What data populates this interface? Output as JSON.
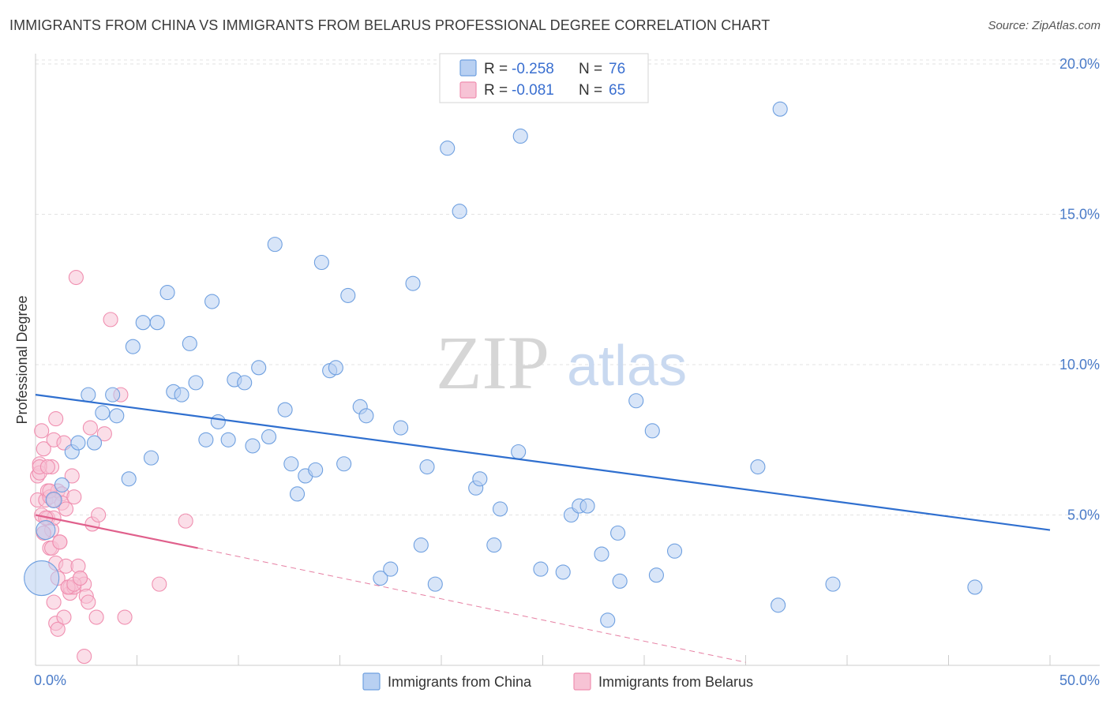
{
  "header": {
    "title": "IMMIGRANTS FROM CHINA VS IMMIGRANTS FROM BELARUS PROFESSIONAL DEGREE CORRELATION CHART",
    "source": "Source: ZipAtlas.com"
  },
  "watermark": {
    "zip": "ZIP",
    "atlas": "atlas"
  },
  "colors": {
    "china": "#6fa0e0",
    "china_fill": "#b8d0f2",
    "china_line": "#2f6fcf",
    "belarus": "#f08fb0",
    "belarus_fill": "#f7c3d5",
    "belarus_line": "#e0608c",
    "grid": "#e3e3e3",
    "tick_text": "#4a7bc8"
  },
  "legend": {
    "rows": [
      {
        "r_label": "R = ",
        "r_value": "-0.258",
        "n_label": "N = ",
        "n_value": "76"
      },
      {
        "r_label": "R = ",
        "r_value": "-0.081",
        "n_label": "N = ",
        "n_value": "65"
      }
    ]
  },
  "chart_data": {
    "type": "scatter",
    "ylabel": "Professional Degree",
    "xlim": [
      0,
      50
    ],
    "ylim": [
      0,
      20.5
    ],
    "x_tick_labels": [
      "0.0%",
      "50.0%"
    ],
    "y_tick_labels": [
      "5.0%",
      "10.0%",
      "15.0%",
      "20.0%"
    ],
    "y_ticks": [
      5,
      10,
      15,
      20
    ],
    "legend_position": "top-center",
    "grid": true,
    "series": [
      {
        "name": "Immigrants from China",
        "points": [
          [
            0.3,
            2.9,
            22
          ],
          [
            0.5,
            4.5,
            12
          ],
          [
            0.9,
            5.5,
            10
          ],
          [
            1.3,
            6.0,
            9
          ],
          [
            1.8,
            7.1,
            9
          ],
          [
            2.1,
            7.4,
            9
          ],
          [
            2.6,
            9.0,
            9
          ],
          [
            2.9,
            7.4,
            9
          ],
          [
            3.3,
            8.4,
            9
          ],
          [
            3.8,
            9.0,
            9
          ],
          [
            4.0,
            8.3,
            9
          ],
          [
            4.6,
            6.2,
            9
          ],
          [
            4.8,
            10.6,
            9
          ],
          [
            5.3,
            11.4,
            9
          ],
          [
            5.7,
            6.9,
            9
          ],
          [
            6.0,
            11.4,
            9
          ],
          [
            6.5,
            12.4,
            9
          ],
          [
            6.8,
            9.1,
            9
          ],
          [
            7.2,
            9.0,
            9
          ],
          [
            7.6,
            10.7,
            9
          ],
          [
            7.9,
            9.4,
            9
          ],
          [
            8.4,
            7.5,
            9
          ],
          [
            8.7,
            12.1,
            9
          ],
          [
            9.0,
            8.1,
            9
          ],
          [
            9.5,
            7.5,
            9
          ],
          [
            9.8,
            9.5,
            9
          ],
          [
            10.3,
            9.4,
            9
          ],
          [
            10.7,
            7.3,
            9
          ],
          [
            11.0,
            9.9,
            9
          ],
          [
            11.5,
            7.6,
            9
          ],
          [
            11.8,
            14.0,
            9
          ],
          [
            12.3,
            8.5,
            9
          ],
          [
            12.6,
            6.7,
            9
          ],
          [
            12.9,
            5.7,
            9
          ],
          [
            13.3,
            6.3,
            9
          ],
          [
            13.8,
            6.5,
            9
          ],
          [
            14.1,
            13.4,
            9
          ],
          [
            14.5,
            9.8,
            9
          ],
          [
            14.8,
            9.9,
            9
          ],
          [
            15.2,
            6.7,
            9
          ],
          [
            15.4,
            12.3,
            9
          ],
          [
            16.0,
            8.6,
            9
          ],
          [
            16.3,
            8.3,
            9
          ],
          [
            17.0,
            2.9,
            9
          ],
          [
            17.5,
            3.2,
            9
          ],
          [
            18.0,
            7.9,
            9
          ],
          [
            18.6,
            12.7,
            9
          ],
          [
            19.0,
            4.0,
            9
          ],
          [
            19.3,
            6.6,
            9
          ],
          [
            19.7,
            2.7,
            9
          ],
          [
            20.3,
            17.2,
            9
          ],
          [
            20.9,
            15.1,
            9
          ],
          [
            21.7,
            5.9,
            9
          ],
          [
            21.9,
            6.2,
            9
          ],
          [
            22.6,
            4.0,
            9
          ],
          [
            22.9,
            5.2,
            9
          ],
          [
            23.8,
            7.1,
            9
          ],
          [
            23.9,
            17.6,
            9
          ],
          [
            24.9,
            3.2,
            9
          ],
          [
            26.0,
            3.1,
            9
          ],
          [
            26.4,
            5.0,
            9
          ],
          [
            26.8,
            5.3,
            9
          ],
          [
            27.2,
            5.3,
            9
          ],
          [
            27.9,
            3.7,
            9
          ],
          [
            28.2,
            1.5,
            9
          ],
          [
            28.7,
            4.4,
            9
          ],
          [
            28.8,
            2.8,
            9
          ],
          [
            29.6,
            8.8,
            9
          ],
          [
            30.4,
            7.8,
            9
          ],
          [
            30.6,
            3.0,
            9
          ],
          [
            31.5,
            3.8,
            9
          ],
          [
            35.6,
            6.6,
            9
          ],
          [
            36.6,
            2.0,
            9
          ],
          [
            36.7,
            18.5,
            9
          ],
          [
            39.3,
            2.7,
            9
          ],
          [
            46.3,
            2.6,
            9
          ]
        ],
        "trend": {
          "x": [
            0,
            50
          ],
          "y": [
            9.0,
            4.5
          ]
        }
      },
      {
        "name": "Immigrants from Belarus",
        "points": [
          [
            0.1,
            6.3
          ],
          [
            0.1,
            5.5
          ],
          [
            0.2,
            6.7
          ],
          [
            0.2,
            6.4
          ],
          [
            0.3,
            7.8
          ],
          [
            0.3,
            5.0
          ],
          [
            0.4,
            7.2
          ],
          [
            0.4,
            4.4
          ],
          [
            0.5,
            5.5
          ],
          [
            0.6,
            5.8
          ],
          [
            0.6,
            4.9
          ],
          [
            0.7,
            5.6
          ],
          [
            0.7,
            3.9
          ],
          [
            0.8,
            6.6
          ],
          [
            0.8,
            4.5
          ],
          [
            0.8,
            3.9
          ],
          [
            0.9,
            7.5
          ],
          [
            0.9,
            4.9
          ],
          [
            0.9,
            2.1
          ],
          [
            1.0,
            8.2
          ],
          [
            1.0,
            3.4
          ],
          [
            1.0,
            1.4
          ],
          [
            1.1,
            5.8
          ],
          [
            1.1,
            2.9
          ],
          [
            1.1,
            1.2
          ],
          [
            1.2,
            4.1
          ],
          [
            1.3,
            5.7
          ],
          [
            1.3,
            5.4
          ],
          [
            1.4,
            7.4
          ],
          [
            1.4,
            1.6
          ],
          [
            1.5,
            5.2
          ],
          [
            1.5,
            3.3
          ],
          [
            1.6,
            2.6
          ],
          [
            1.7,
            2.4
          ],
          [
            1.7,
            2.6
          ],
          [
            1.8,
            6.3
          ],
          [
            1.9,
            5.6
          ],
          [
            1.9,
            2.6
          ],
          [
            2.0,
            12.9
          ],
          [
            2.1,
            3.3
          ],
          [
            2.2,
            2.9
          ],
          [
            2.4,
            0.3
          ],
          [
            2.4,
            2.7
          ],
          [
            2.5,
            2.3
          ],
          [
            2.6,
            2.1
          ],
          [
            2.7,
            7.9
          ],
          [
            2.8,
            4.7
          ],
          [
            3.0,
            1.6
          ],
          [
            3.1,
            5.0
          ],
          [
            3.4,
            7.7
          ],
          [
            3.7,
            11.5
          ],
          [
            4.2,
            9.0
          ],
          [
            4.4,
            1.6
          ],
          [
            6.1,
            2.7
          ],
          [
            7.4,
            4.8
          ],
          [
            0.2,
            6.6
          ],
          [
            0.5,
            4.9
          ],
          [
            0.6,
            6.6
          ],
          [
            0.7,
            5.8
          ],
          [
            0.9,
            5.5
          ],
          [
            1.2,
            4.1
          ],
          [
            1.6,
            2.6
          ],
          [
            1.9,
            2.7
          ],
          [
            2.2,
            2.9
          ],
          [
            0.4,
            4.4
          ]
        ],
        "trend": {
          "x": [
            0,
            8.0
          ],
          "y": [
            5.0,
            3.9
          ]
        },
        "trend_extension": {
          "x": [
            8.0,
            35
          ],
          "y": [
            3.9,
            0.1
          ]
        }
      }
    ],
    "bottom_legend": [
      "Immigrants from China",
      "Immigrants from Belarus"
    ]
  }
}
